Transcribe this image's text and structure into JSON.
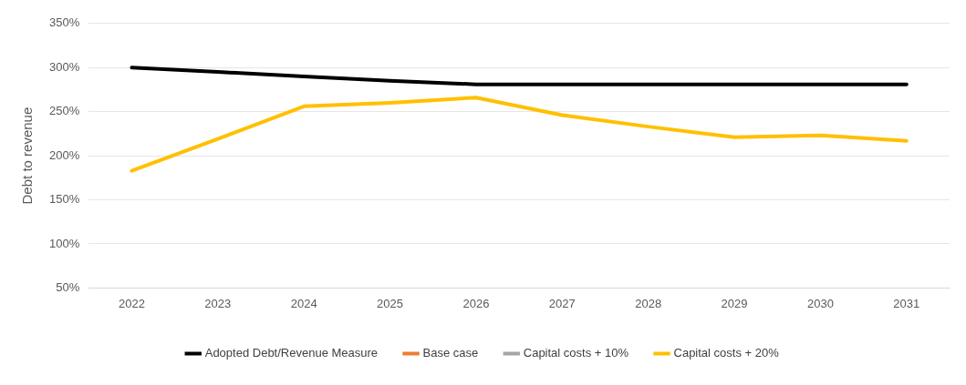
{
  "chart_data": {
    "type": "line",
    "ylabel": "Debt to revenue",
    "categories": [
      "2022",
      "2023",
      "2024",
      "2025",
      "2026",
      "2027",
      "2028",
      "2029",
      "2030",
      "2031"
    ],
    "series": [
      {
        "name": "Adopted Debt/Revenue Measure",
        "color": "#000000",
        "values": [
          300,
          295,
          290,
          285,
          281,
          281,
          281,
          281,
          281,
          281
        ]
      },
      {
        "name": "Base case",
        "color": "#ed7d31",
        "values": [
          null,
          null,
          null,
          null,
          null,
          null,
          null,
          null,
          null,
          null
        ]
      },
      {
        "name": "Capital costs + 10%",
        "color": "#a5a5a5",
        "values": [
          null,
          null,
          null,
          null,
          null,
          null,
          null,
          null,
          null,
          null
        ]
      },
      {
        "name": "Capital costs + 20%",
        "color": "#ffc000",
        "values": [
          183,
          219,
          256,
          260,
          266,
          246,
          233,
          221,
          223,
          217
        ]
      }
    ],
    "ylim": [
      50,
      350
    ],
    "yticks": [
      {
        "value": 50,
        "label": "50%"
      },
      {
        "value": 100,
        "label": "100%"
      },
      {
        "value": 150,
        "label": "150%"
      },
      {
        "value": 200,
        "label": "200%"
      },
      {
        "value": 250,
        "label": "250%"
      },
      {
        "value": 300,
        "label": "300%"
      },
      {
        "value": 350,
        "label": "350%"
      }
    ],
    "grid": "y",
    "legend": "bottom",
    "marker": "none",
    "line_style": "solid"
  }
}
